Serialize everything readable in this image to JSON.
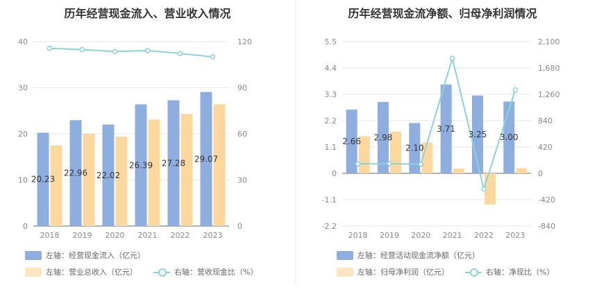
{
  "chart_data": [
    {
      "type": "bar",
      "title": "历年经营现金流入、营业收入情况",
      "categories": [
        "2018",
        "2019",
        "2020",
        "2021",
        "2022",
        "2023"
      ],
      "y_left_ticks": [
        "0",
        "10",
        "20",
        "30",
        "40"
      ],
      "y_right_ticks": [
        "0",
        "30",
        "60",
        "90",
        "120"
      ],
      "y_left_range": [
        0,
        40
      ],
      "y_right_range": [
        0,
        120
      ],
      "series": [
        {
          "name": "左轴：经营现金流入（亿元）",
          "axis": "left",
          "type": "bar",
          "color": "#8eaee0",
          "values": [
            20.23,
            22.96,
            22.02,
            26.39,
            27.28,
            29.07
          ],
          "labels": [
            "20.23",
            "22.96",
            "22.02",
            "26.39",
            "27.28",
            "29.07"
          ]
        },
        {
          "name": "左轴：营业总收入（亿元）",
          "axis": "left",
          "type": "bar",
          "color": "#fdd89e",
          "values": [
            17.5,
            20.0,
            19.4,
            23.1,
            24.3,
            26.4
          ]
        },
        {
          "name": "右轴：营收现金比（%）",
          "axis": "right",
          "type": "line",
          "color": "#8cd3d9",
          "values": [
            115.6,
            114.8,
            113.5,
            114.2,
            112.3,
            110.1
          ]
        }
      ],
      "grid": true
    },
    {
      "type": "bar",
      "title": "历年经营现金流净额、归母净利润情况",
      "categories": [
        "2018",
        "2019",
        "2020",
        "2021",
        "2022",
        "2023"
      ],
      "y_left_ticks": [
        "-2.2",
        "-1.1",
        "0",
        "1.1",
        "2.2",
        "3.3",
        "4.4",
        "5.5"
      ],
      "y_right_ticks": [
        "-840",
        "-420",
        "0",
        "420",
        "840",
        "1,260",
        "1,680",
        "2,100"
      ],
      "y_left_range": [
        -2.2,
        5.5
      ],
      "y_right_range": [
        -840,
        2100
      ],
      "series": [
        {
          "name": "左轴：经营活动现金流净额（亿元）",
          "axis": "left",
          "type": "bar",
          "color": "#8eaee0",
          "values": [
            2.66,
            2.98,
            2.1,
            3.71,
            3.25,
            3.0
          ],
          "labels": [
            "2.66",
            "2.98",
            "2.10",
            "3.71",
            "3.25",
            "3.00"
          ]
        },
        {
          "name": "左轴：归母净利润（亿元）",
          "axis": "left",
          "type": "bar",
          "color": "#fdd89e",
          "values": [
            1.55,
            1.74,
            1.29,
            0.2,
            -1.3,
            0.22
          ]
        },
        {
          "name": "右轴：净现比（%）",
          "axis": "right",
          "type": "line",
          "color": "#8cd3d9",
          "values": [
            150,
            155,
            145,
            1835,
            -250,
            1330
          ]
        }
      ],
      "grid": true
    }
  ]
}
